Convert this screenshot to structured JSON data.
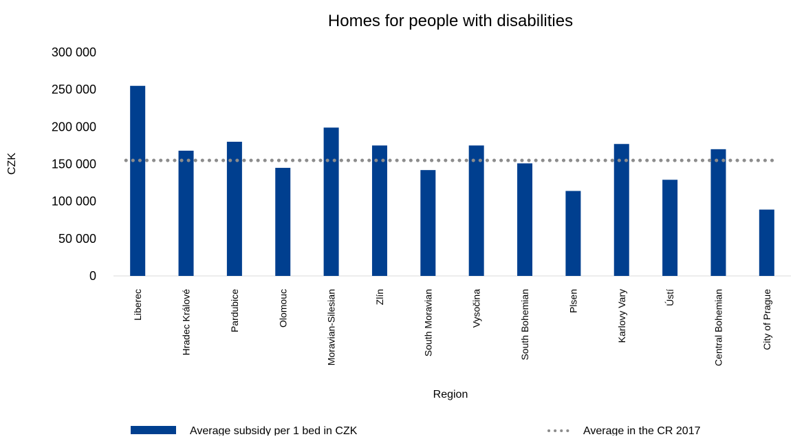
{
  "chart_data": {
    "type": "bar",
    "title": "Homes for people with disabilities",
    "xlabel": "Region",
    "ylabel": "CZK",
    "ylim": [
      0,
      300000
    ],
    "yticks": [
      0,
      50000,
      100000,
      150000,
      200000,
      250000,
      300000
    ],
    "ytick_labels": [
      "0",
      "50 000",
      "100 000",
      "150 000",
      "200 000",
      "250 000",
      "300 000"
    ],
    "categories": [
      "Liberec",
      "Hradec Králové",
      "Pardubice",
      "Olomouc",
      "Moravian-Silesian",
      "Zlín",
      "South Moravian",
      "Vysočina",
      "South Bohemian",
      "Plsen",
      "Karlovy Vary",
      "Ústí",
      "Central Bohemian",
      "City of Prague"
    ],
    "series": [
      {
        "name": "Average subsidy per 1 bed in CZK",
        "type": "bar",
        "color": "#003f8f",
        "values": [
          255000,
          168000,
          180000,
          145000,
          199000,
          175000,
          142000,
          175000,
          151000,
          114000,
          177000,
          129000,
          170000,
          89000
        ]
      },
      {
        "name": "Average in the CR 2017",
        "type": "line",
        "style": "dotted",
        "color": "#8c8c8c",
        "value": 155000
      }
    ],
    "grid": false,
    "legend_position": "bottom"
  }
}
